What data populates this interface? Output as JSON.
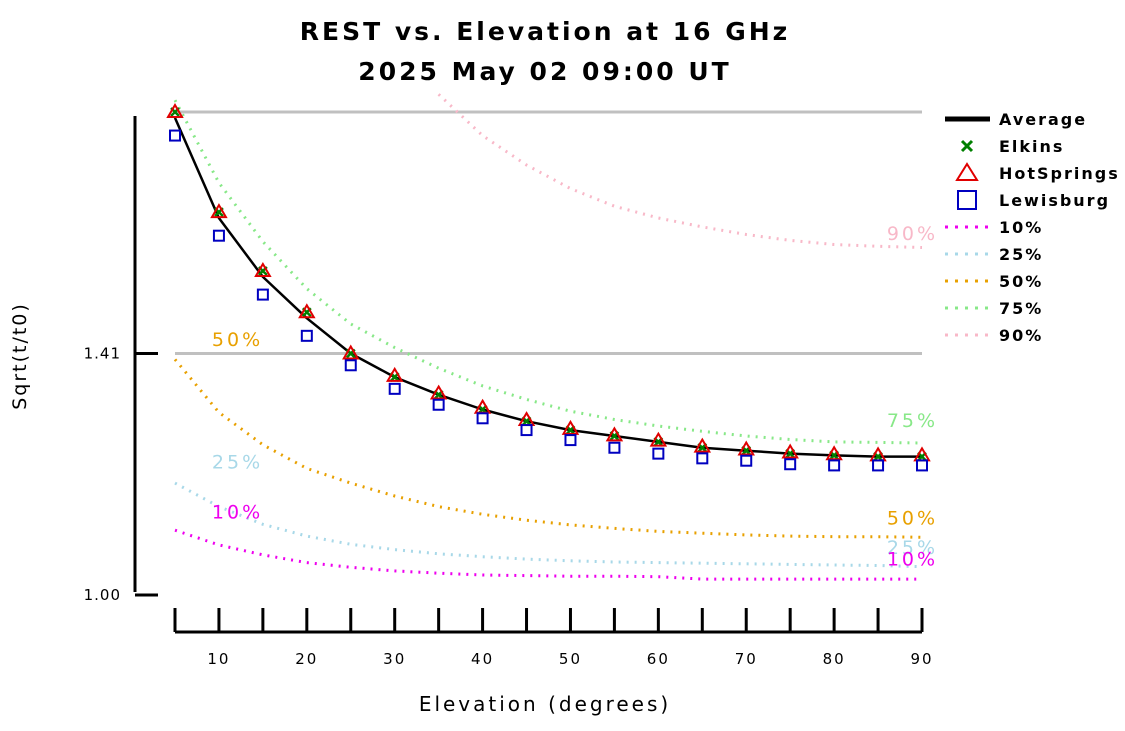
{
  "chart_data": {
    "type": "line",
    "title": "REST vs. Elevation at 16 GHz",
    "subtitle": "2025 May 02 09:00 UT",
    "xlabel": "Elevation (degrees)",
    "ylabel": "Sqrt(t/t0)",
    "xlim": [
      5,
      90
    ],
    "xticks": [
      10,
      20,
      30,
      40,
      50,
      60,
      70,
      80,
      90
    ],
    "yticks": [
      {
        "value": 1.0,
        "label": "1.00"
      },
      {
        "value": 1.41,
        "label": "1.41"
      }
    ],
    "ylim": [
      1.0,
      1.82
    ],
    "hlines": [
      1.41,
      1.82
    ],
    "legend_position": "right",
    "x": [
      5,
      10,
      15,
      20,
      25,
      30,
      35,
      40,
      45,
      50,
      55,
      60,
      65,
      70,
      75,
      80,
      85,
      90
    ],
    "series": [
      {
        "name": "Average",
        "style": "line",
        "color": "#000000",
        "values": [
          1.81,
          1.64,
          1.54,
          1.47,
          1.41,
          1.37,
          1.34,
          1.315,
          1.295,
          1.28,
          1.27,
          1.26,
          1.25,
          1.245,
          1.24,
          1.237,
          1.235,
          1.235
        ]
      },
      {
        "name": "Elkins",
        "style": "x",
        "color": "#008000",
        "values": [
          1.82,
          1.65,
          1.55,
          1.48,
          1.41,
          1.37,
          1.34,
          1.315,
          1.295,
          1.28,
          1.27,
          1.26,
          1.25,
          1.245,
          1.24,
          1.237,
          1.235,
          1.235
        ]
      },
      {
        "name": "HotSprings",
        "style": "triangle",
        "color": "#e00000",
        "values": [
          1.82,
          1.65,
          1.55,
          1.48,
          1.41,
          1.372,
          1.342,
          1.318,
          1.297,
          1.282,
          1.271,
          1.262,
          1.252,
          1.247,
          1.242,
          1.239,
          1.237,
          1.237
        ]
      },
      {
        "name": "Lewisburg",
        "style": "square",
        "color": "#0000c0",
        "values": [
          1.78,
          1.61,
          1.51,
          1.44,
          1.39,
          1.35,
          1.323,
          1.3,
          1.28,
          1.263,
          1.25,
          1.24,
          1.232,
          1.228,
          1.222,
          1.22,
          1.22,
          1.22
        ]
      },
      {
        "name": "10%",
        "style": "dotted",
        "color": "#ee00ee",
        "label": "10%",
        "values": [
          1.11,
          1.085,
          1.068,
          1.055,
          1.047,
          1.041,
          1.037,
          1.034,
          1.033,
          1.032,
          1.032,
          1.031,
          1.027,
          1.027,
          1.027,
          1.027,
          1.027,
          1.027
        ]
      },
      {
        "name": "25%",
        "style": "dotted",
        "color": "#a8d8e8",
        "label": "25%",
        "values": [
          1.19,
          1.15,
          1.12,
          1.1,
          1.086,
          1.077,
          1.07,
          1.065,
          1.061,
          1.058,
          1.056,
          1.055,
          1.054,
          1.053,
          1.052,
          1.051,
          1.05,
          1.048
        ]
      },
      {
        "name": "50%",
        "style": "dotted",
        "color": "#e8a000",
        "label": "50%",
        "values": [
          1.4,
          1.31,
          1.255,
          1.215,
          1.19,
          1.168,
          1.15,
          1.137,
          1.127,
          1.119,
          1.113,
          1.108,
          1.105,
          1.102,
          1.1,
          1.099,
          1.099,
          1.098
        ]
      },
      {
        "name": "75%",
        "style": "dotted",
        "color": "#88e888",
        "label": "75%",
        "values": [
          1.84,
          1.7,
          1.6,
          1.52,
          1.46,
          1.42,
          1.385,
          1.355,
          1.332,
          1.312,
          1.298,
          1.287,
          1.278,
          1.27,
          1.264,
          1.26,
          1.259,
          1.258
        ]
      },
      {
        "name": "90%",
        "style": "dotted",
        "color": "#f8b8c8",
        "label": "90%",
        "values": [
          null,
          null,
          null,
          null,
          null,
          null,
          1.85,
          1.78,
          1.73,
          1.69,
          1.66,
          1.64,
          1.625,
          1.612,
          1.602,
          1.595,
          1.592,
          1.59
        ]
      }
    ],
    "curve_labels": [
      {
        "text": "50%",
        "color": "#e8a000",
        "x": 9.2,
        "y": 1.423
      },
      {
        "text": "25%",
        "color": "#a8d8e8",
        "x": 9.2,
        "y": 1.215
      },
      {
        "text": "10%",
        "color": "#ee00ee",
        "x": 9.2,
        "y": 1.13
      },
      {
        "text": "90%",
        "color": "#f8b8c8",
        "x": 86,
        "y": 1.603
      },
      {
        "text": "75%",
        "color": "#88e888",
        "x": 86,
        "y": 1.285
      },
      {
        "text": "50%",
        "color": "#e8a000",
        "x": 86,
        "y": 1.12
      },
      {
        "text": "25%",
        "color": "#a8d8e8",
        "x": 86,
        "y": 1.07
      },
      {
        "text": "10%",
        "color": "#ee00ee",
        "x": 86,
        "y": 1.05
      }
    ]
  }
}
